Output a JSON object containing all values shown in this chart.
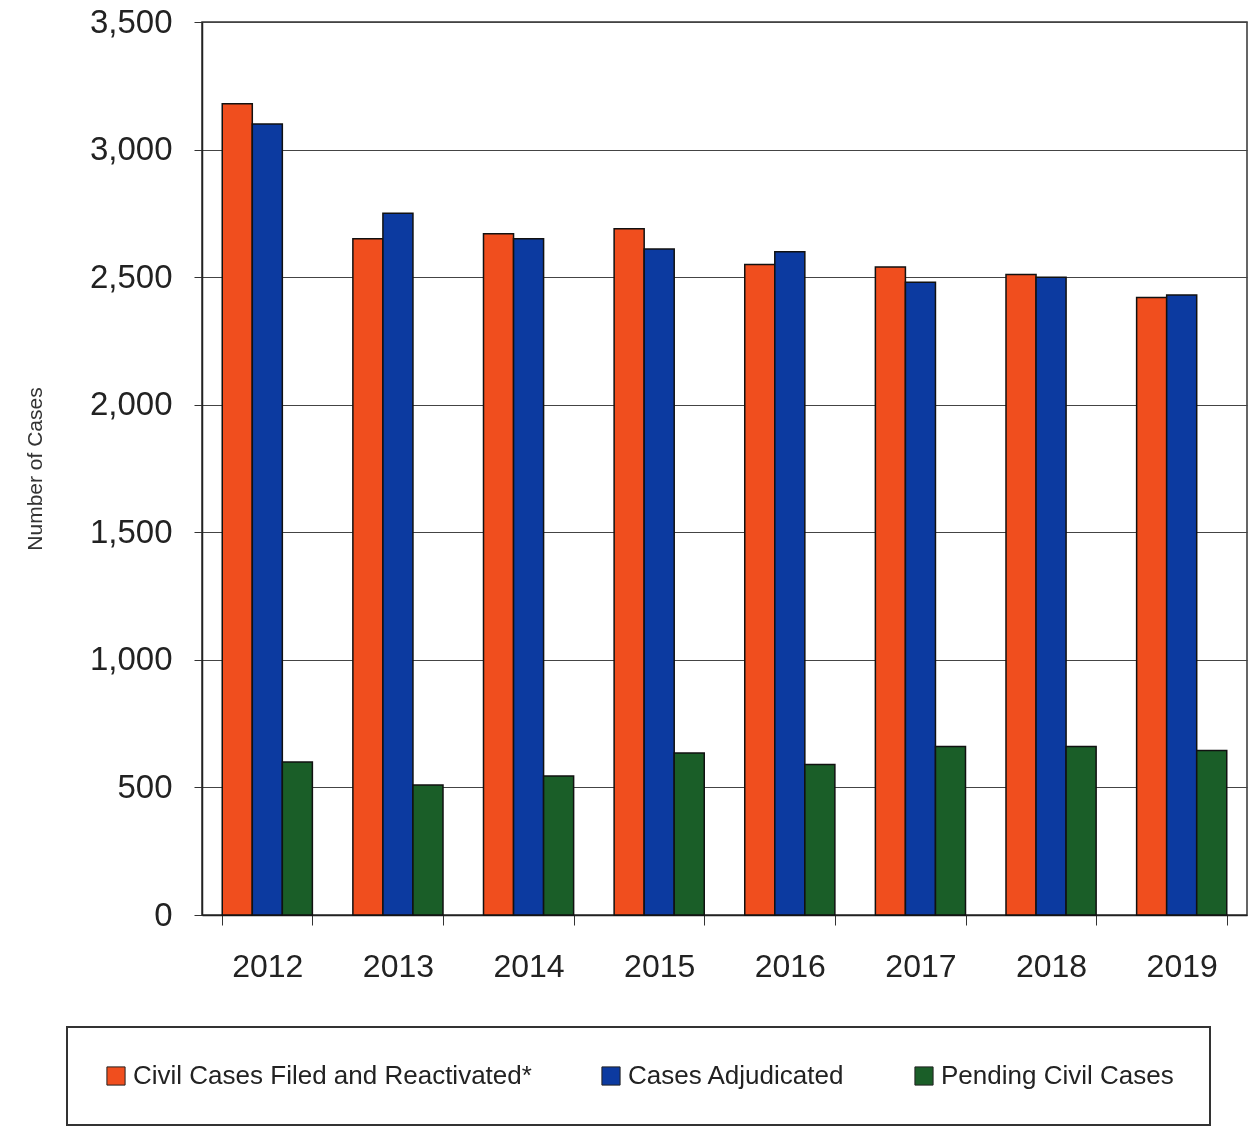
{
  "chart_data": {
    "type": "bar",
    "categories": [
      "2012",
      "2013",
      "2014",
      "2015",
      "2016",
      "2017",
      "2018",
      "2019"
    ],
    "ylabel": "Number of Cases",
    "ylim": [
      0,
      3500
    ],
    "yticks": [
      0,
      500,
      {
        "value": 1000,
        "label": "1,000"
      },
      {
        "value": 1500,
        "label": "1,500"
      },
      {
        "value": 2000,
        "label": "2,000"
      },
      {
        "value": 2500,
        "label": "2,500"
      },
      {
        "value": 3000,
        "label": "3,000"
      },
      {
        "value": 3500,
        "label": "3,500"
      }
    ],
    "series": [
      {
        "name": "Civil Cases Filed and Reactivated*",
        "color": "#f04e1e",
        "values": [
          3180,
          2650,
          2670,
          2690,
          2550,
          2540,
          2510,
          2420
        ]
      },
      {
        "name": "Cases Adjudicated",
        "color": "#0c3aa0",
        "values": [
          3100,
          2750,
          2650,
          2610,
          2600,
          2480,
          2500,
          2430
        ]
      },
      {
        "name": "Pending Civil Cases",
        "color": "#1a5e28",
        "values": [
          600,
          510,
          545,
          635,
          590,
          660,
          660,
          645
        ]
      }
    ],
    "grid": "y",
    "legend": "bottom"
  }
}
